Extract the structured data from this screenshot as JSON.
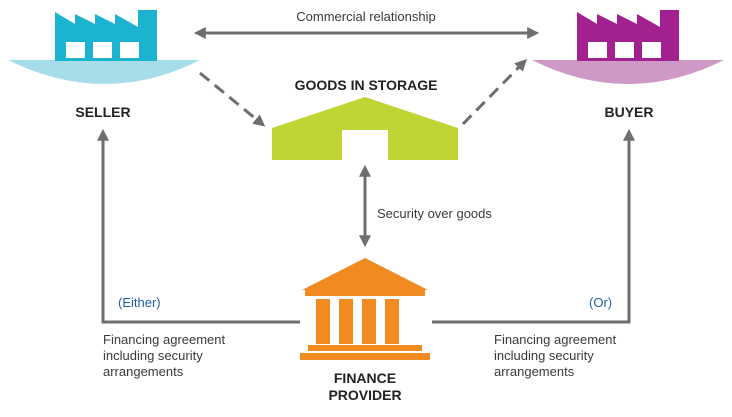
{
  "diagram": {
    "seller": {
      "label": "SELLER"
    },
    "buyer": {
      "label": "BUYER"
    },
    "storage": {
      "label": "GOODS IN STORAGE"
    },
    "finance": {
      "label_line1": "FINANCE",
      "label_line2": "PROVIDER"
    },
    "relationship": {
      "label": "Commercial relationship"
    },
    "security": {
      "label": "Security over goods"
    },
    "either": {
      "label": "(Either)"
    },
    "or": {
      "label": "(Or)"
    },
    "agreement_left": {
      "line1": "Financing agreement",
      "line2": "including security",
      "line3": "arrangements"
    },
    "agreement_right": {
      "line1": "Financing agreement",
      "line2": "including security",
      "line3": "arrangements"
    }
  },
  "colors": {
    "seller": "#1bb3cf",
    "seller_base": "#a6dde8",
    "buyer": "#a3208f",
    "buyer_base": "#cf99c6",
    "storage": "#c0d433",
    "finance": "#f18a21",
    "arrow": "#6d6e71",
    "choice_text": "#1f5fa8"
  },
  "icons": {
    "seller": "factory-icon",
    "buyer": "factory-icon",
    "storage": "warehouse-icon",
    "finance": "bank-icon"
  }
}
